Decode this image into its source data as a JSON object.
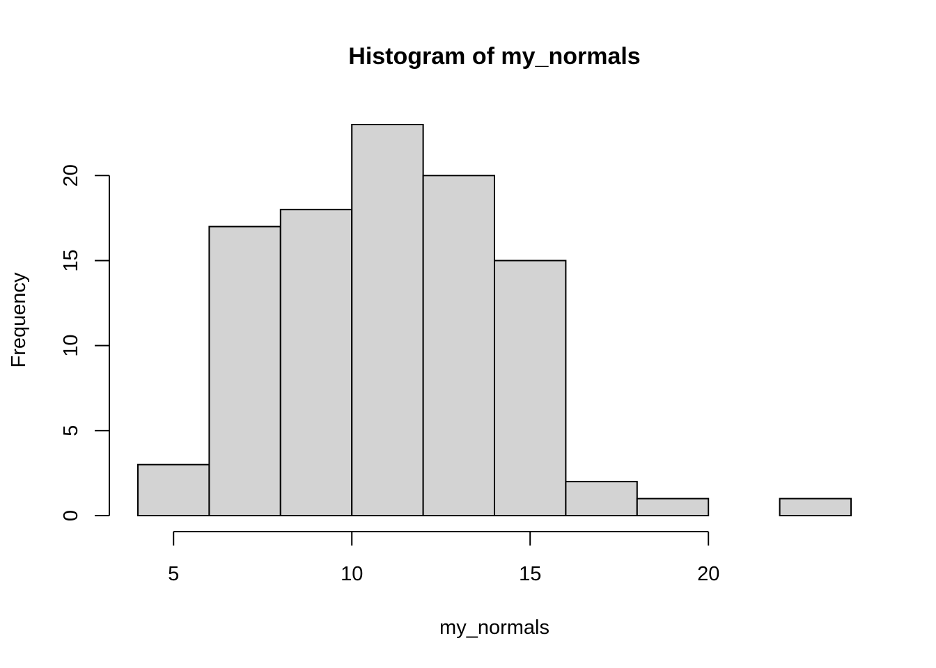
{
  "chart_data": {
    "type": "bar",
    "subtype": "histogram",
    "title": "Histogram of my_normals",
    "xlabel": "my_normals",
    "ylabel": "Frequency",
    "breaks": [
      4,
      6,
      8,
      10,
      12,
      14,
      16,
      18,
      20,
      22,
      24
    ],
    "values": [
      3,
      17,
      18,
      23,
      20,
      15,
      2,
      1,
      0,
      1
    ],
    "xlim": [
      4,
      24
    ],
    "ylim": [
      0,
      23
    ],
    "x_ticks": [
      "5",
      "10",
      "15",
      "20"
    ],
    "y_ticks": [
      "0",
      "5",
      "10",
      "15",
      "20"
    ],
    "bar_color": "#d3d3d3",
    "border_color": "#000000",
    "grid": false,
    "legend": "none"
  }
}
